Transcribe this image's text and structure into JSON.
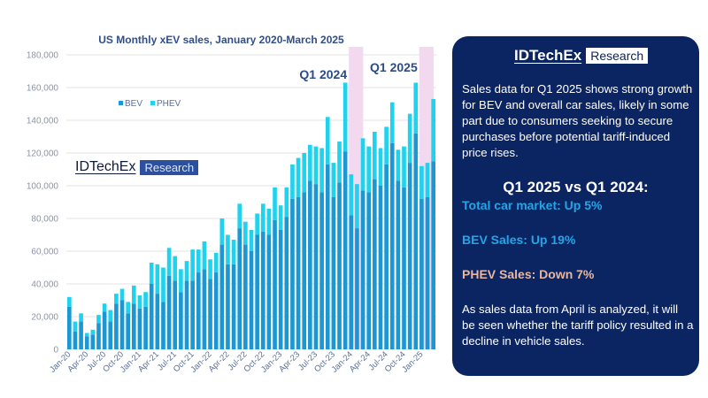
{
  "chart_data": {
    "type": "bar",
    "stacked": true,
    "title": "US Monthly xEV sales, January 2020-March 2025",
    "xlabel": "",
    "ylabel": "",
    "ylim": [
      0,
      180000
    ],
    "yticks": [
      "0",
      "20,000",
      "40,000",
      "60,000",
      "80,000",
      "100,000",
      "120,000",
      "140,000",
      "160,000",
      "180,000"
    ],
    "grid": true,
    "legend_position": "top-left",
    "categories": [
      "Jan-20",
      "Feb-20",
      "Mar-20",
      "Apr-20",
      "May-20",
      "Jun-20",
      "Jul-20",
      "Aug-20",
      "Sep-20",
      "Oct-20",
      "Nov-20",
      "Dec-20",
      "Jan-21",
      "Feb-21",
      "Mar-21",
      "Apr-21",
      "May-21",
      "Jun-21",
      "Jul-21",
      "Aug-21",
      "Sep-21",
      "Oct-21",
      "Nov-21",
      "Dec-21",
      "Jan-22",
      "Feb-22",
      "Mar-22",
      "Apr-22",
      "May-22",
      "Jun-22",
      "Jul-22",
      "Aug-22",
      "Sep-22",
      "Oct-22",
      "Nov-22",
      "Dec-22",
      "Jan-23",
      "Feb-23",
      "Mar-23",
      "Apr-23",
      "May-23",
      "Jun-23",
      "Jul-23",
      "Aug-23",
      "Sep-23",
      "Oct-23",
      "Nov-23",
      "Dec-23",
      "Jan-24",
      "Feb-24",
      "Mar-24",
      "Apr-24",
      "May-24",
      "Jun-24",
      "Jul-24",
      "Aug-24",
      "Sep-24",
      "Oct-24",
      "Nov-24",
      "Dec-24",
      "Jan-25",
      "Feb-25",
      "Mar-25"
    ],
    "series": [
      {
        "name": "BEV",
        "color": "#1b97d4",
        "values": [
          26000,
          11000,
          17000,
          8000,
          9000,
          16000,
          23000,
          17000,
          28000,
          30000,
          22000,
          28000,
          25000,
          26000,
          40000,
          34000,
          29000,
          45000,
          42000,
          35000,
          42000,
          42000,
          47000,
          49000,
          43000,
          47000,
          64000,
          52000,
          52000,
          74000,
          64000,
          60000,
          70000,
          72000,
          70000,
          79000,
          73000,
          81000,
          92000,
          93000,
          96000,
          103000,
          101000,
          96000,
          113000,
          93000,
          102000,
          121000,
          82000,
          74000,
          97000,
          96000,
          104000,
          100000,
          113000,
          126000,
          103000,
          99000,
          114000,
          132000,
          92000,
          93000,
          115000
        ]
      },
      {
        "name": "PHEV",
        "color": "#1fd2ee",
        "values": [
          6000,
          6000,
          5000,
          2000,
          3000,
          5000,
          5000,
          7000,
          6000,
          7000,
          7000,
          11000,
          8000,
          9000,
          13000,
          18000,
          21000,
          17000,
          15000,
          14000,
          12000,
          19000,
          14000,
          17000,
          12000,
          12000,
          16000,
          18000,
          15000,
          15000,
          14000,
          13000,
          13000,
          17000,
          16000,
          20000,
          15000,
          18000,
          21000,
          24000,
          24000,
          22000,
          23000,
          27000,
          29000,
          21000,
          25000,
          42000,
          25000,
          27000,
          32000,
          28000,
          29000,
          23000,
          23000,
          25000,
          19000,
          25000,
          30000,
          31000,
          20000,
          21000,
          38000
        ]
      }
    ],
    "annotations": [
      {
        "text": "Q1 2024",
        "highlight": [
          "Jan-24",
          "Mar-24"
        ]
      },
      {
        "text": "Q1 2025",
        "highlight": [
          "Jan-25",
          "Mar-25"
        ]
      }
    ],
    "highlight_color": "#f3d9ef"
  },
  "logo": {
    "brand": "IDTechEx",
    "tag": "Research"
  },
  "panel": {
    "intro": "Sales data for Q1 2025 shows strong growth for BEV and overall car sales, likely in some part due to consumers seeking to secure purchases before potential tariff-induced price rises.",
    "heading": "Q1 2025 vs Q1 2024:",
    "stats": [
      "Total car market: Up 5%",
      "BEV Sales: Up 19%",
      "PHEV Sales: Down 7%"
    ],
    "outro": "As sales data from April is analyzed, it will be seen whether the tariff policy resulted in a decline in vehicle sales."
  }
}
